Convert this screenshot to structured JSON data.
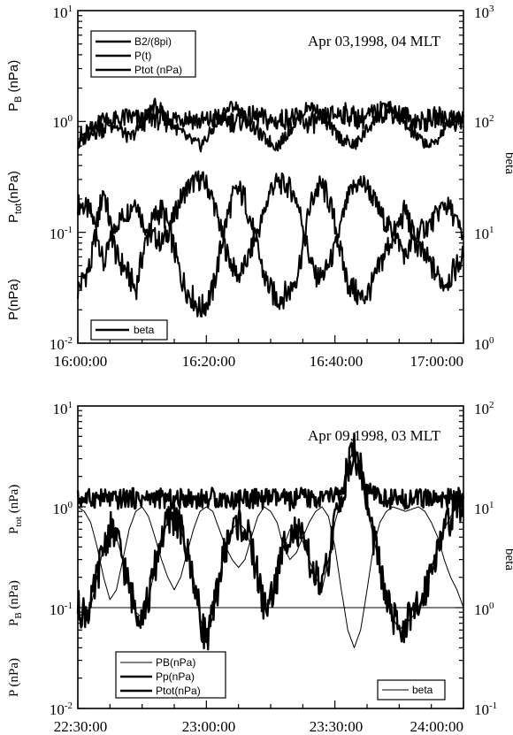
{
  "chart_data": [
    {
      "type": "line",
      "annotation": "Apr 03,1998, 04 MLT",
      "x_ticks": [
        "16:00:00",
        "16:20:00",
        "16:40:00",
        "17:00:00"
      ],
      "left_axis": {
        "scale": "log",
        "ylim": [
          0.01,
          10
        ],
        "tick_labels": [
          {
            "base": "10",
            "exp": "1"
          },
          {
            "base": "10",
            "exp": "0"
          },
          {
            "base": "10",
            "exp": "-1"
          },
          {
            "base": "10",
            "exp": "-2"
          }
        ],
        "labels": [
          "P",
          "B",
          " (nPa)",
          "P",
          "tot",
          "(nPa)",
          "P(nPa)"
        ]
      },
      "right_axis": {
        "scale": "log",
        "ylim": [
          1,
          1000
        ],
        "tick_labels": [
          {
            "base": "10",
            "exp": "3"
          },
          {
            "base": "10",
            "exp": "2"
          },
          {
            "base": "10",
            "exp": "1"
          },
          {
            "base": "10",
            "exp": "0"
          }
        ],
        "label": "beta"
      },
      "legend": [
        "B2/(8pi)",
        "P(t)",
        "Ptot  (nPa)"
      ],
      "legend2": [
        "beta"
      ],
      "series": [
        {
          "name": "B2/(8pi)",
          "axis": "left",
          "values": [
            0.18,
            0.17,
            0.15,
            0.1,
            0.05,
            0.08,
            0.12,
            0.14,
            0.16,
            0.2,
            0.13,
            0.1,
            0.09,
            0.08,
            0.1,
            0.14,
            0.2,
            0.25,
            0.28,
            0.3,
            0.27,
            0.2,
            0.12,
            0.07,
            0.05,
            0.04,
            0.05,
            0.07,
            0.1,
            0.15,
            0.25,
            0.28,
            0.27,
            0.25,
            0.2,
            0.12,
            0.06,
            0.04,
            0.04,
            0.05,
            0.07,
            0.12,
            0.2,
            0.26,
            0.28,
            0.26,
            0.2,
            0.15,
            0.12,
            0.1,
            0.08,
            0.06,
            0.08,
            0.1,
            0.11,
            0.12,
            0.15,
            0.18,
            0.16,
            0.12,
            0.09
          ]
        },
        {
          "name": "P(t)",
          "axis": "left",
          "values": [
            0.03,
            0.04,
            0.05,
            0.12,
            0.25,
            0.12,
            0.06,
            0.05,
            0.04,
            0.03,
            0.06,
            0.1,
            0.14,
            0.16,
            0.12,
            0.07,
            0.04,
            0.03,
            0.025,
            0.02,
            0.023,
            0.03,
            0.06,
            0.12,
            0.2,
            0.24,
            0.2,
            0.12,
            0.07,
            0.04,
            0.03,
            0.025,
            0.027,
            0.03,
            0.04,
            0.07,
            0.16,
            0.24,
            0.26,
            0.2,
            0.12,
            0.06,
            0.035,
            0.03,
            0.025,
            0.028,
            0.035,
            0.05,
            0.07,
            0.09,
            0.12,
            0.16,
            0.1,
            0.07,
            0.06,
            0.05,
            0.04,
            0.035,
            0.04,
            0.05,
            0.06
          ]
        },
        {
          "name": "Ptot  (nPa)",
          "axis": "left",
          "values": [
            0.7,
            0.75,
            0.8,
            0.85,
            0.9,
            0.95,
            1.0,
            1.05,
            1.1,
            1.05,
            1.0,
            1.05,
            1.1,
            1.0,
            1.0,
            1.05,
            1.1,
            1.1,
            1.05,
            1.0,
            1.0,
            1.05,
            1.1,
            1.05,
            1.0,
            1.0,
            1.05,
            1.1,
            1.1,
            1.05,
            1.0,
            1.0,
            1.05,
            1.1,
            1.05,
            1.0,
            0.95,
            1.0,
            1.05,
            1.1,
            1.15,
            1.2,
            1.15,
            1.1,
            1.05,
            1.1,
            1.15,
            1.2,
            1.25,
            1.2,
            1.15,
            1.1,
            1.05,
            1.0,
            1.0,
            1.05,
            1.1,
            1.1,
            1.05,
            1.0,
            1.0
          ]
        },
        {
          "name": "beta",
          "axis": "right",
          "values": [
            60,
            70,
            80,
            95,
            110,
            100,
            90,
            80,
            70,
            80,
            95,
            120,
            140,
            130,
            110,
            90,
            80,
            70,
            65,
            60,
            70,
            85,
            100,
            120,
            140,
            130,
            110,
            90,
            80,
            70,
            65,
            60,
            70,
            85,
            100,
            120,
            140,
            130,
            110,
            90,
            80,
            70,
            65,
            60,
            70,
            85,
            100,
            120,
            140,
            130,
            110,
            90,
            80,
            70,
            65,
            60,
            70,
            85,
            100,
            120,
            110
          ]
        }
      ]
    },
    {
      "type": "line",
      "annotation": "Apr 09,1998, 03 MLT",
      "x_ticks": [
        "22:30:00",
        "23:00:00",
        "23:30:00",
        "24:00:00"
      ],
      "left_axis": {
        "scale": "log",
        "ylim": [
          0.01,
          10
        ],
        "tick_labels": [
          {
            "base": "10",
            "exp": "1"
          },
          {
            "base": "10",
            "exp": "0"
          },
          {
            "base": "10",
            "exp": "-1"
          },
          {
            "base": "10",
            "exp": "-2"
          }
        ],
        "labels": [
          "P",
          "tot",
          " (nPa)",
          "P",
          "B",
          " (nPa)",
          "P (nPa)"
        ]
      },
      "right_axis": {
        "scale": "log",
        "ylim": [
          0.1,
          100
        ],
        "tick_labels": [
          {
            "base": "10",
            "exp": "2"
          },
          {
            "base": "10",
            "exp": "1"
          },
          {
            "base": "10",
            "exp": "0"
          },
          {
            "base": "10",
            "exp": "-1"
          }
        ],
        "label": "beta"
      },
      "legend": [
        "PB(nPa)",
        "Pp(nPa)",
        "Ptot(nPa)"
      ],
      "legend2": [
        "beta"
      ],
      "series": [
        {
          "name": "PB(nPa)",
          "axis": "left",
          "values": [
            1.0,
            0.9,
            0.7,
            0.4,
            0.2,
            0.12,
            0.15,
            0.3,
            0.6,
            0.9,
            1.0,
            0.8,
            0.5,
            0.3,
            0.2,
            0.15,
            0.2,
            0.35,
            0.6,
            0.9,
            1.0,
            0.9,
            0.6,
            0.4,
            0.3,
            0.25,
            0.3,
            0.5,
            0.8,
            1.0,
            0.9,
            0.7,
            0.4,
            0.3,
            0.35,
            0.5,
            0.7,
            0.9,
            1.0,
            0.8,
            0.4,
            0.15,
            0.06,
            0.04,
            0.06,
            0.15,
            0.4,
            0.7,
            0.9,
            1.0,
            0.95,
            0.9,
            0.95,
            1.0,
            0.9,
            0.7,
            0.5,
            0.3,
            0.2,
            0.15,
            0.1
          ]
        },
        {
          "name": "Pp(nPa)",
          "axis": "left",
          "values": [
            0.1,
            0.09,
            0.1,
            0.2,
            0.4,
            0.6,
            0.5,
            0.3,
            0.15,
            0.1,
            0.09,
            0.12,
            0.25,
            0.5,
            0.7,
            0.8,
            0.6,
            0.35,
            0.2,
            0.08,
            0.05,
            0.08,
            0.2,
            0.4,
            0.6,
            0.7,
            0.6,
            0.4,
            0.2,
            0.1,
            0.12,
            0.2,
            0.4,
            0.6,
            0.55,
            0.45,
            0.3,
            0.2,
            0.15,
            0.3,
            0.7,
            1.2,
            2.5,
            4.0,
            2.5,
            1.0,
            0.5,
            0.25,
            0.12,
            0.08,
            0.06,
            0.07,
            0.08,
            0.1,
            0.15,
            0.25,
            0.4,
            0.6,
            0.8,
            1.0,
            1.1
          ]
        },
        {
          "name": "Ptot(nPa)",
          "axis": "left",
          "values": [
            1.2,
            1.2,
            1.2,
            1.25,
            1.2,
            1.2,
            1.15,
            1.2,
            1.25,
            1.2,
            1.2,
            1.2,
            1.25,
            1.2,
            1.2,
            1.15,
            1.2,
            1.25,
            1.2,
            1.2,
            1.2,
            1.25,
            1.2,
            1.2,
            1.15,
            1.2,
            1.25,
            1.2,
            1.2,
            1.2,
            1.25,
            1.2,
            1.2,
            1.15,
            1.2,
            1.25,
            1.2,
            1.2,
            1.2,
            1.25,
            1.3,
            1.4,
            2.0,
            3.0,
            2.0,
            1.4,
            1.3,
            1.25,
            1.2,
            1.2,
            1.15,
            1.2,
            1.25,
            1.2,
            1.2,
            1.2,
            1.25,
            1.2,
            1.2,
            1.15,
            1.2
          ]
        },
        {
          "name": "beta",
          "axis": "right",
          "values": [
            0.8,
            0.9,
            1.0,
            2.0,
            4.0,
            6.0,
            5.0,
            3.0,
            1.5,
            0.9,
            0.8,
            1.2,
            2.5,
            5.0,
            7.0,
            8.0,
            6.0,
            3.5,
            2.0,
            0.8,
            0.5,
            0.8,
            2.0,
            4.0,
            6.0,
            7.0,
            6.0,
            4.0,
            2.0,
            1.0,
            1.2,
            2.0,
            4.0,
            6.0,
            5.5,
            4.5,
            3.0,
            2.0,
            1.5,
            3.0,
            7.0,
            12.0,
            25.0,
            40.0,
            25.0,
            10.0,
            5.0,
            2.5,
            1.2,
            0.8,
            0.6,
            0.7,
            0.8,
            1.0,
            1.5,
            2.5,
            4.0,
            6.0,
            8.0,
            10.0,
            11.0
          ]
        }
      ],
      "reference_line": {
        "axis": "left",
        "y": 0.1
      }
    }
  ]
}
